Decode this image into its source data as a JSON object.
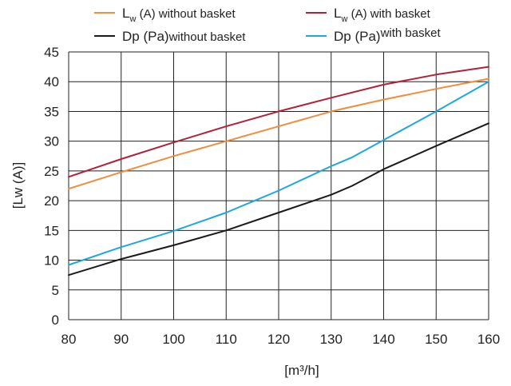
{
  "chart_data": {
    "type": "line",
    "xlabel": "[m³/h]",
    "ylabel": "[Lw (A)]",
    "xlim": [
      80,
      160
    ],
    "ylim": [
      0,
      45
    ],
    "x_ticks": [
      80,
      90,
      100,
      110,
      120,
      130,
      140,
      150,
      160
    ],
    "y_ticks": [
      0,
      5,
      10,
      15,
      20,
      25,
      30,
      35,
      40,
      45
    ],
    "grid": true,
    "legend_position": "top",
    "series": [
      {
        "name": "Lw (A) without basket",
        "legend_main": "L",
        "legend_sub": "w",
        "legend_rest": " (A) without basket",
        "color": "#f08c3c",
        "x": [
          80,
          90,
          100,
          110,
          120,
          130,
          140,
          150,
          160
        ],
        "y": [
          22,
          24.8,
          27.5,
          30,
          32.5,
          35,
          37,
          38.8,
          40.5
        ]
      },
      {
        "name": "Lw (A) with basket",
        "legend_main": "L",
        "legend_sub": "w",
        "legend_rest": " (A) with basket",
        "color": "#b32136",
        "x": [
          80,
          90,
          100,
          110,
          120,
          130,
          140,
          150,
          160
        ],
        "y": [
          24,
          27,
          29.8,
          32.5,
          35,
          37.3,
          39.5,
          41.2,
          42.5
        ]
      },
      {
        "name": "Dp (Pa) without basket",
        "legend_main": "Dp (Pa)",
        "legend_sub": "",
        "legend_rest": "without basket",
        "color": "#1a1a1a",
        "x": [
          80,
          90,
          100,
          110,
          120,
          130,
          134,
          140,
          150,
          160
        ],
        "y": [
          7.5,
          10.2,
          12.5,
          15,
          18,
          21,
          22.5,
          25.3,
          29.2,
          33
        ]
      },
      {
        "name": "Dp (Pa) with basket",
        "legend_main": "Dp (Pa)",
        "legend_sub": "",
        "legend_rest": "with basket",
        "legend_rest_super": true,
        "color": "#1fa7dc",
        "x": [
          80,
          90,
          100,
          110,
          120,
          130,
          134,
          140,
          150,
          160
        ],
        "y": [
          9.2,
          12.2,
          14.9,
          18,
          21.7,
          25.8,
          27.3,
          30.2,
          35,
          40
        ]
      }
    ]
  }
}
